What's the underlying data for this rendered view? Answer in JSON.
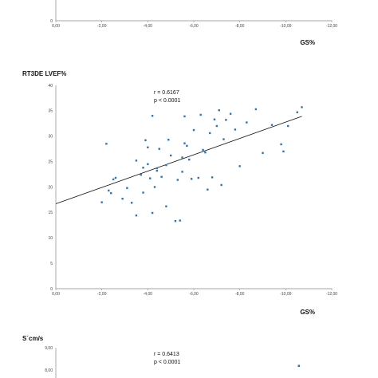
{
  "chart_data": [
    {
      "type": "scatter",
      "xlabel": "GS%",
      "xlim": [
        0,
        -12
      ],
      "x_ticks": [
        "0,00",
        "-2,00",
        "-4,00",
        "-6,00",
        "-8,00",
        "-10,00",
        "-12,00"
      ],
      "y_ticks": [
        "0"
      ],
      "grid": false
    },
    {
      "type": "scatter",
      "ylabel": "RT3DE LVEF%",
      "xlabel": "GS%",
      "xlim": [
        0,
        -12
      ],
      "ylim": [
        0,
        40
      ],
      "x_ticks": [
        "0,00",
        "-2,00",
        "-4,00",
        "-6,00",
        "-8,00",
        "-10,00",
        "-12,00"
      ],
      "y_ticks": [
        "0",
        "5",
        "10",
        "15",
        "20",
        "25",
        "30",
        "35",
        "40"
      ],
      "annotations": [
        "r = 0.6167",
        "p < 0.0001"
      ],
      "grid": false,
      "series_color": "#2e75b6",
      "trendline": {
        "x": [
          0,
          -10.7
        ],
        "y": [
          16.7,
          33.9
        ]
      },
      "points": [
        {
          "x": -2.0,
          "y": 17.0
        },
        {
          "x": -2.2,
          "y": 28.5
        },
        {
          "x": -2.3,
          "y": 19.3
        },
        {
          "x": -2.4,
          "y": 18.8
        },
        {
          "x": -2.5,
          "y": 21.5
        },
        {
          "x": -2.6,
          "y": 21.8
        },
        {
          "x": -2.9,
          "y": 17.7
        },
        {
          "x": -3.1,
          "y": 19.8
        },
        {
          "x": -3.3,
          "y": 16.9
        },
        {
          "x": -3.5,
          "y": 14.4
        },
        {
          "x": -3.5,
          "y": 25.2
        },
        {
          "x": -3.7,
          "y": 22.4
        },
        {
          "x": -3.8,
          "y": 18.9
        },
        {
          "x": -3.8,
          "y": 23.8
        },
        {
          "x": -3.9,
          "y": 29.2
        },
        {
          "x": -4.1,
          "y": 21.7
        },
        {
          "x": -4.0,
          "y": 27.8
        },
        {
          "x": -4.0,
          "y": 24.5
        },
        {
          "x": -4.2,
          "y": 14.9
        },
        {
          "x": -4.3,
          "y": 20.0
        },
        {
          "x": -4.4,
          "y": 23.2
        },
        {
          "x": -4.4,
          "y": 23.7
        },
        {
          "x": -4.5,
          "y": 27.5
        },
        {
          "x": -4.6,
          "y": 22.0
        },
        {
          "x": -4.8,
          "y": 16.2
        },
        {
          "x": -4.8,
          "y": 24.3
        },
        {
          "x": -4.9,
          "y": 29.3
        },
        {
          "x": -4.2,
          "y": 34.0
        },
        {
          "x": -5.0,
          "y": 26.2
        },
        {
          "x": -5.2,
          "y": 13.3
        },
        {
          "x": -5.3,
          "y": 21.4
        },
        {
          "x": -5.4,
          "y": 13.4
        },
        {
          "x": -5.5,
          "y": 23.0
        },
        {
          "x": -5.5,
          "y": 25.8
        },
        {
          "x": -5.6,
          "y": 28.6
        },
        {
          "x": -5.6,
          "y": 33.9
        },
        {
          "x": -5.7,
          "y": 28.1
        },
        {
          "x": -5.8,
          "y": 25.4
        },
        {
          "x": -5.9,
          "y": 21.6
        },
        {
          "x": -6.0,
          "y": 31.2
        },
        {
          "x": -6.2,
          "y": 21.8
        },
        {
          "x": -6.3,
          "y": 34.2
        },
        {
          "x": -6.4,
          "y": 27.3
        },
        {
          "x": -6.5,
          "y": 26.8
        },
        {
          "x": -6.6,
          "y": 19.5
        },
        {
          "x": -6.7,
          "y": 30.6
        },
        {
          "x": -6.8,
          "y": 21.9
        },
        {
          "x": -6.9,
          "y": 33.3
        },
        {
          "x": -7.0,
          "y": 32.0
        },
        {
          "x": -7.1,
          "y": 35.1
        },
        {
          "x": -7.2,
          "y": 20.4
        },
        {
          "x": -7.3,
          "y": 29.4
        },
        {
          "x": -7.4,
          "y": 33.2
        },
        {
          "x": -7.6,
          "y": 34.4
        },
        {
          "x": -7.8,
          "y": 31.3
        },
        {
          "x": -8.0,
          "y": 24.1
        },
        {
          "x": -8.3,
          "y": 32.7
        },
        {
          "x": -8.7,
          "y": 35.3
        },
        {
          "x": -9.0,
          "y": 26.7
        },
        {
          "x": -9.4,
          "y": 32.2
        },
        {
          "x": -9.8,
          "y": 28.4
        },
        {
          "x": -10.1,
          "y": 32.0
        },
        {
          "x": -10.5,
          "y": 34.7
        },
        {
          "x": -10.7,
          "y": 35.7
        },
        {
          "x": -9.9,
          "y": 27.0
        }
      ]
    },
    {
      "type": "scatter",
      "ylabel": "S´cm/s",
      "annotations": [
        "r = 0.6413",
        "p < 0.0001"
      ],
      "y_ticks": [
        "9,00",
        "8,00"
      ],
      "grid": false
    }
  ]
}
